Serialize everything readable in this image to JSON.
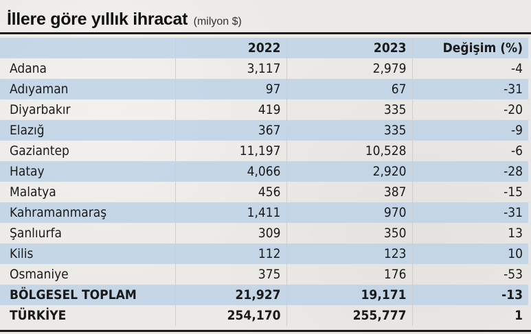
{
  "title": "İllere göre yıllık ihracat",
  "unit": "(milyon $)",
  "columns": [
    "",
    "2022",
    "2023",
    "Değişim (%)"
  ],
  "rows": [
    [
      "Adana",
      "3,117",
      "2,979",
      "-4"
    ],
    [
      "Adıyaman",
      "97",
      "67",
      "-31"
    ],
    [
      "Diyarbakır",
      "419",
      "335",
      "-20"
    ],
    [
      "Elazığ",
      "367",
      "335",
      "-9"
    ],
    [
      "Gaziantep",
      "11,197",
      "10,528",
      "-6"
    ],
    [
      "Hatay",
      "4,066",
      "2,920",
      "-28"
    ],
    [
      "Malatya",
      "456",
      "387",
      "-15"
    ],
    [
      "Kahramanmaraş",
      "1,411",
      "970",
      "-31"
    ],
    [
      "Şanlıurfa",
      "309",
      "350",
      "13"
    ],
    [
      "Kilis",
      "112",
      "123",
      "10"
    ],
    [
      "Osmaniye",
      "375",
      "176",
      "-53"
    ]
  ],
  "totals": [
    [
      "BÖLGESEL TOPLAM",
      "21,927",
      "19,171",
      "-13"
    ],
    [
      "TÜRKİYE",
      "254,170",
      "255,777",
      "1"
    ]
  ],
  "colors": {
    "band": "#bcd2e6",
    "rule": "#1c1c1c",
    "background": "#eceae6"
  }
}
